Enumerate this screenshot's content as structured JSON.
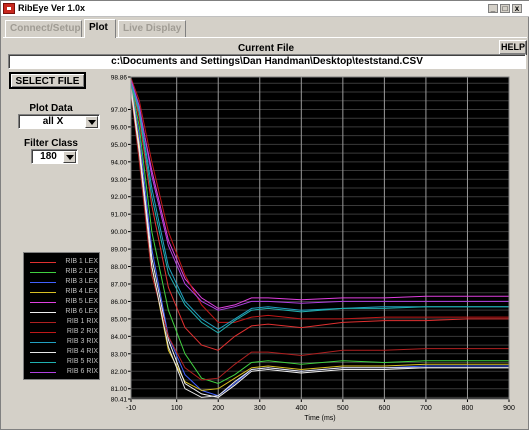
{
  "window": {
    "title": "RibEye  Ver 1.0x",
    "minimize": "_",
    "maximize": "□",
    "close": "x"
  },
  "tabs": [
    {
      "label": "Connect/Setup"
    },
    {
      "label": "Plot"
    },
    {
      "label": "Live Display"
    }
  ],
  "current_file": {
    "label": "Current File",
    "path": "c:\\Documents and Settings\\Dan Handman\\Desktop\\teststand.CSV"
  },
  "help_label": "HELP",
  "select_file_label": "SELECT FILE",
  "plot_data": {
    "label": "Plot Data",
    "value": "all X"
  },
  "filter_class": {
    "label": "Filter Class",
    "value": "180"
  },
  "legend": [
    {
      "label": "RIB 1 LEX",
      "color": "#e03030"
    },
    {
      "label": "RIB 2 LEX",
      "color": "#40d040"
    },
    {
      "label": "RIB 3 LEX",
      "color": "#4060ff"
    },
    {
      "label": "RIB 4 LEX",
      "color": "#d8c020"
    },
    {
      "label": "RIB 5 LEX",
      "color": "#e040e0"
    },
    {
      "label": "RIB 6 LEX",
      "color": "#f0f0f0"
    },
    {
      "label": "RIB 1 RIX",
      "color": "#b02020"
    },
    {
      "label": "RIB 2 RIX",
      "color": "#c01818"
    },
    {
      "label": "RIB 3 RIX",
      "color": "#20a0c0"
    },
    {
      "label": "RIB 4 RIX",
      "color": "#e8e8e8"
    },
    {
      "label": "RIB 5 RIX",
      "color": "#20b0b0"
    },
    {
      "label": "RIB 6 RIX",
      "color": "#b040e0"
    }
  ],
  "chart_data": {
    "type": "line",
    "xlabel": "Time (ms)",
    "ylabel": "",
    "xlim": [
      -10,
      900
    ],
    "ylim": [
      80.41,
      98.86
    ],
    "x_ticks": [
      -10,
      100,
      200,
      300,
      400,
      500,
      600,
      700,
      800,
      900
    ],
    "y_ticks": [
      80.41,
      81.0,
      82.0,
      83.0,
      84.0,
      85.0,
      86.0,
      87.0,
      88.0,
      89.0,
      90.0,
      91.0,
      92.0,
      93.0,
      94.0,
      95.0,
      96.0,
      97.0,
      98.86
    ],
    "y_tick_labels": [
      "80.41",
      "81.00",
      "82.00",
      "83.00",
      "84.00",
      "85.00",
      "86.00",
      "87.00",
      "88.00",
      "89.00",
      "90.00",
      "91.00",
      "92.00",
      "93.00",
      "94.00",
      "95.00",
      "96.00",
      "97.00",
      "98.86"
    ],
    "grid": true,
    "series": [
      {
        "name": "RIB 1 LEX",
        "color": "#e03030",
        "x": [
          -10,
          10,
          40,
          80,
          120,
          160,
          200,
          240,
          280,
          320,
          400,
          500,
          600,
          700,
          800,
          900
        ],
        "y": [
          98.6,
          96.5,
          91.5,
          86.8,
          84.5,
          83.5,
          83.2,
          84.0,
          84.6,
          84.7,
          84.5,
          84.8,
          84.9,
          84.9,
          85.0,
          85.0
        ]
      },
      {
        "name": "RIB 2 LEX",
        "color": "#40d040",
        "x": [
          -10,
          10,
          40,
          80,
          120,
          160,
          200,
          240,
          280,
          320,
          400,
          500,
          600,
          700,
          800,
          900
        ],
        "y": [
          98.5,
          96.0,
          90.0,
          85.5,
          83.0,
          81.6,
          81.3,
          81.8,
          82.5,
          82.6,
          82.4,
          82.6,
          82.5,
          82.6,
          82.6,
          82.6
        ]
      },
      {
        "name": "RIB 3 LEX",
        "color": "#4060ff",
        "x": [
          -10,
          10,
          40,
          80,
          120,
          160,
          200,
          240,
          280,
          320,
          400,
          500,
          600,
          700,
          800,
          900
        ],
        "y": [
          98.4,
          95.5,
          89.0,
          84.0,
          81.8,
          80.9,
          80.6,
          81.3,
          82.1,
          82.2,
          82.0,
          82.2,
          82.2,
          82.3,
          82.3,
          82.3
        ]
      },
      {
        "name": "RIB 4 LEX",
        "color": "#d8c020",
        "x": [
          -10,
          10,
          40,
          80,
          120,
          160,
          200,
          240,
          280,
          320,
          400,
          500,
          600,
          700,
          800,
          900
        ],
        "y": [
          98.3,
          95.0,
          88.0,
          83.2,
          81.4,
          80.9,
          81.0,
          81.6,
          82.2,
          82.3,
          82.1,
          82.3,
          82.3,
          82.4,
          82.4,
          82.4
        ]
      },
      {
        "name": "RIB 5 LEX",
        "color": "#e040e0",
        "x": [
          -10,
          10,
          40,
          80,
          120,
          160,
          200,
          240,
          280,
          320,
          400,
          500,
          600,
          700,
          800,
          900
        ],
        "y": [
          98.7,
          97.0,
          93.5,
          89.5,
          87.3,
          86.2,
          85.6,
          85.8,
          86.2,
          86.2,
          86.1,
          86.2,
          86.2,
          86.3,
          86.3,
          86.3
        ]
      },
      {
        "name": "RIB 6 LEX",
        "color": "#f0f0f0",
        "x": [
          -10,
          10,
          40,
          80,
          120,
          160,
          200,
          240,
          280,
          320,
          400,
          500,
          600,
          700,
          800,
          900
        ],
        "y": [
          98.2,
          94.8,
          88.5,
          83.8,
          81.3,
          80.7,
          80.5,
          81.2,
          82.0,
          82.1,
          81.9,
          82.1,
          82.1,
          82.2,
          82.2,
          82.2
        ]
      },
      {
        "name": "RIB 1 RIX",
        "color": "#b02020",
        "x": [
          -10,
          10,
          40,
          80,
          120,
          160,
          200,
          240,
          280,
          320,
          400,
          500,
          600,
          700,
          800,
          900
        ],
        "y": [
          98.0,
          94.0,
          87.5,
          84.0,
          82.2,
          81.5,
          81.6,
          82.4,
          83.1,
          83.1,
          82.9,
          83.2,
          83.2,
          83.3,
          83.3,
          83.3
        ]
      },
      {
        "name": "RIB 2 RIX",
        "color": "#c01818",
        "x": [
          -10,
          10,
          40,
          80,
          120,
          160,
          200,
          240,
          280,
          320,
          400,
          500,
          600,
          700,
          800,
          900
        ],
        "y": [
          98.8,
          97.5,
          94.0,
          90.0,
          87.5,
          85.8,
          84.8,
          84.8,
          85.1,
          85.2,
          85.0,
          85.0,
          85.1,
          85.1,
          85.1,
          85.1
        ]
      },
      {
        "name": "RIB 3 RIX",
        "color": "#20a0c0",
        "x": [
          -10,
          10,
          40,
          80,
          120,
          160,
          200,
          240,
          280,
          320,
          400,
          500,
          600,
          700,
          800,
          900
        ],
        "y": [
          98.6,
          97.0,
          92.5,
          88.0,
          86.0,
          85.0,
          84.4,
          85.0,
          85.6,
          85.7,
          85.5,
          85.6,
          85.7,
          85.7,
          85.7,
          85.7
        ]
      },
      {
        "name": "RIB 4 RIX",
        "color": "#e8e8e8",
        "x": [
          -10,
          10,
          40,
          80,
          120,
          160,
          200,
          240,
          280,
          320,
          400,
          500,
          600,
          700,
          800,
          900
        ],
        "y": [
          98.1,
          94.5,
          88.0,
          83.4,
          81.0,
          80.5,
          80.6,
          81.4,
          82.1,
          82.2,
          82.0,
          82.2,
          82.2,
          82.2,
          82.2,
          82.2
        ]
      },
      {
        "name": "RIB 5 RIX",
        "color": "#20b0b0",
        "x": [
          -10,
          10,
          40,
          80,
          120,
          160,
          200,
          240,
          280,
          320,
          400,
          500,
          600,
          700,
          800,
          900
        ],
        "y": [
          98.5,
          96.8,
          92.0,
          87.6,
          85.8,
          84.8,
          84.2,
          84.9,
          85.5,
          85.6,
          85.4,
          85.6,
          85.6,
          85.7,
          85.7,
          85.7
        ]
      },
      {
        "name": "RIB 6 RIX",
        "color": "#b040e0",
        "x": [
          -10,
          10,
          40,
          80,
          120,
          160,
          200,
          240,
          280,
          320,
          400,
          500,
          600,
          700,
          800,
          900
        ],
        "y": [
          98.7,
          97.2,
          93.2,
          89.2,
          87.0,
          86.0,
          85.5,
          85.7,
          86.0,
          86.0,
          85.9,
          86.0,
          86.0,
          86.0,
          86.0,
          86.0
        ]
      }
    ]
  }
}
